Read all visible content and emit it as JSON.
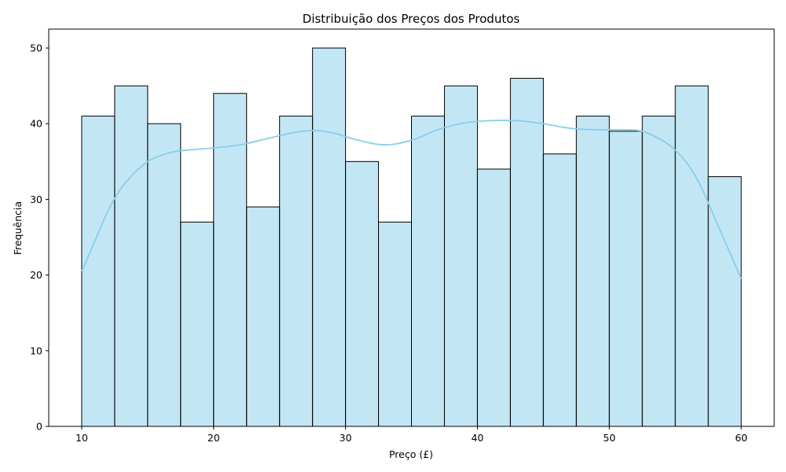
{
  "chart_data": {
    "type": "bar",
    "title": "Distribuição dos Preços dos Produtos",
    "xlabel": "Preço (£)",
    "ylabel": "Frequência",
    "xlim": [
      7.5,
      62.5
    ],
    "ylim": [
      0,
      52.5
    ],
    "xticks": [
      10,
      20,
      30,
      40,
      50,
      60
    ],
    "yticks": [
      0,
      10,
      20,
      30,
      40,
      50
    ],
    "bin_edges": [
      10,
      12.5,
      15,
      17.5,
      20,
      22.5,
      25,
      27.5,
      30,
      32.5,
      35,
      37.5,
      40,
      42.5,
      45,
      47.5,
      50,
      52.5,
      55,
      57.5,
      60
    ],
    "counts": [
      41,
      45,
      40,
      27,
      44,
      29,
      41,
      50,
      35,
      27,
      41,
      45,
      34,
      46,
      36,
      41,
      39,
      41,
      45,
      33
    ],
    "kde_curve": {
      "x": [
        10,
        11,
        12,
        13,
        14,
        15,
        16,
        17,
        18,
        20,
        22,
        24,
        26,
        27.5,
        29,
        31,
        33,
        35,
        37,
        39,
        41,
        43,
        45,
        47,
        49,
        51,
        52.5,
        54,
        55,
        56,
        57,
        58,
        59,
        60
      ],
      "y": [
        20.5,
        24.5,
        28.5,
        31.5,
        33.5,
        35,
        35.8,
        36.3,
        36.5,
        36.8,
        37.2,
        38,
        38.8,
        39.1,
        38.8,
        37.8,
        37.2,
        37.8,
        39.2,
        40.1,
        40.4,
        40.4,
        40,
        39.4,
        39.2,
        39.2,
        39,
        37.8,
        36.5,
        34.5,
        31.5,
        27.5,
        23.5,
        19.5
      ]
    },
    "grid": false,
    "colors": {
      "bar_fill": "#87ceeb",
      "bar_edge": "#000000",
      "kde_line": "#87ceeb"
    }
  }
}
